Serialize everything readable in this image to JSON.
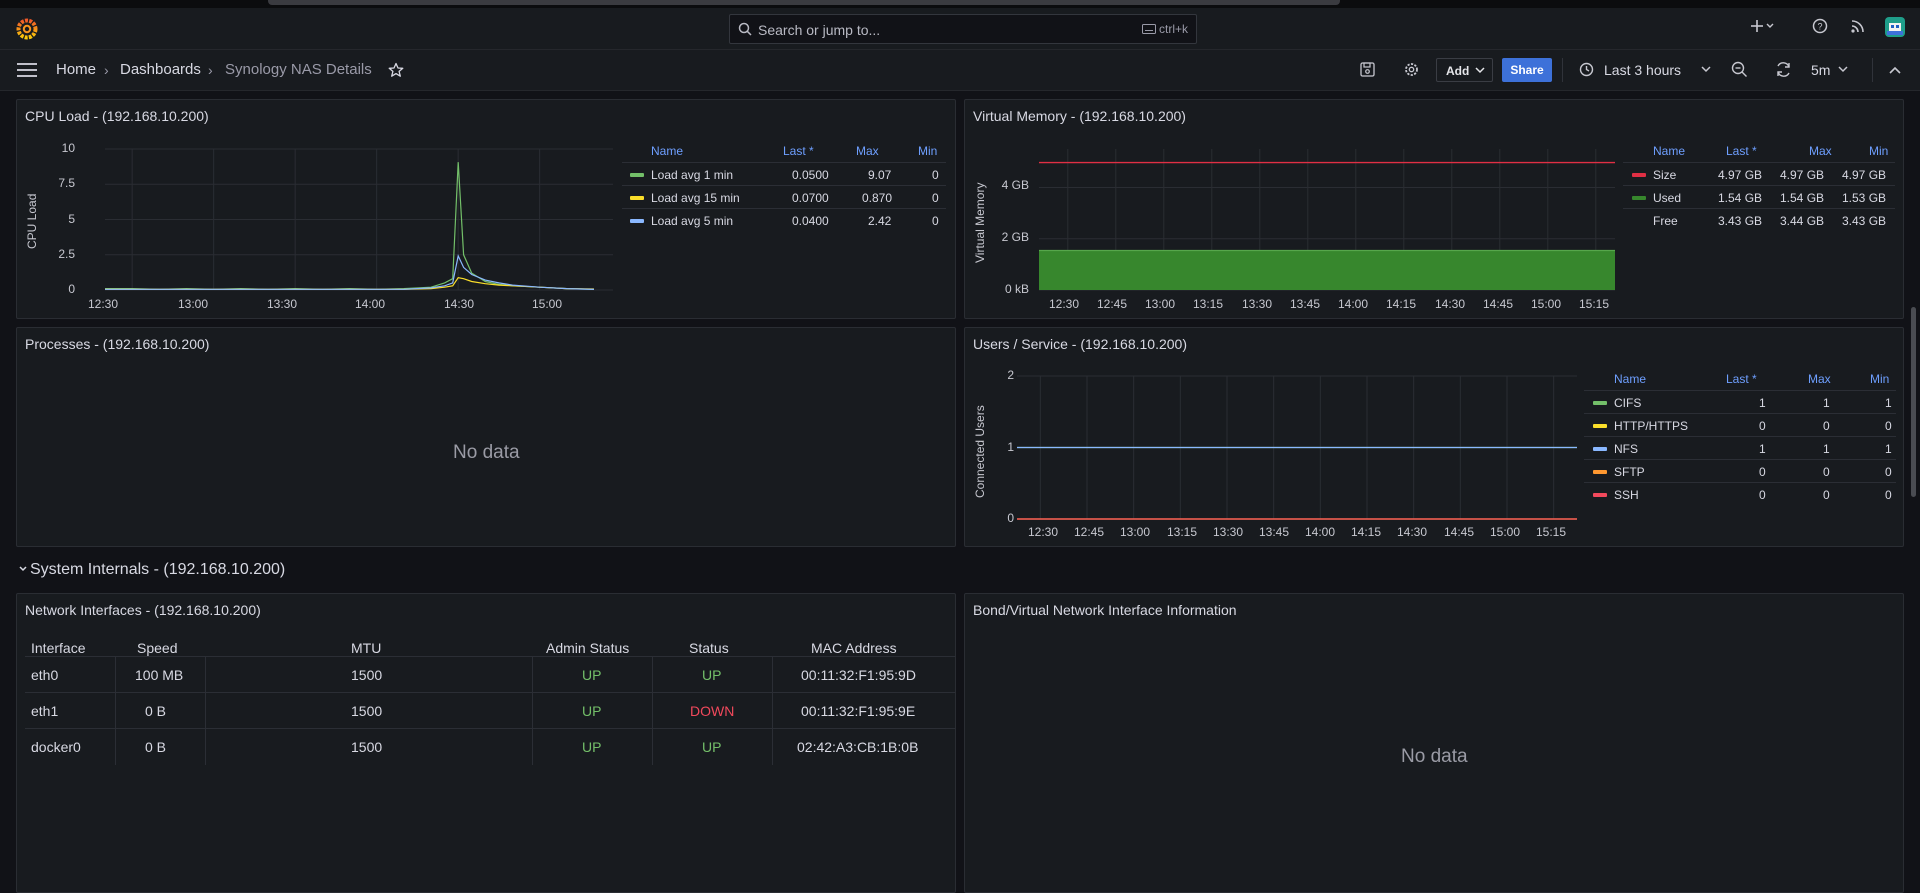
{
  "header": {
    "search_placeholder": "Search or jump to...",
    "search_shortcut": "ctrl+k"
  },
  "breadcrumb": {
    "home": "Home",
    "dashboards": "Dashboards",
    "current": "Synology NAS Details"
  },
  "toolbar": {
    "add_label": "Add",
    "share_label": "Share",
    "time_range": "Last 3 hours",
    "refresh_interval": "5m"
  },
  "colors": {
    "accent": "#3d71d9",
    "green": "#73bf69",
    "yellow": "#fade2a",
    "blue": "#8ab8ff",
    "orange": "#ff9830",
    "red": "#f2495c",
    "memory_fill": "#37872d"
  },
  "panels": {
    "cpu": {
      "title": "CPU Load - (192.168.10.200)",
      "ylabel": "CPU Load",
      "legend_headers": [
        "Name",
        "Last *",
        "Max",
        "Min"
      ],
      "legend": [
        {
          "name": "Load avg 1 min",
          "last": "0.0500",
          "max": "9.07",
          "min": "0",
          "color": "#73bf69"
        },
        {
          "name": "Load avg 15 min",
          "last": "0.0700",
          "max": "0.870",
          "min": "0",
          "color": "#fade2a"
        },
        {
          "name": "Load avg 5 min",
          "last": "0.0400",
          "max": "2.42",
          "min": "0",
          "color": "#8ab8ff"
        }
      ]
    },
    "memory": {
      "title": "Virtual Memory - (192.168.10.200)",
      "ylabel": "Virtual Memory",
      "legend_headers": [
        "Name",
        "Last *",
        "Max",
        "Min"
      ],
      "legend": [
        {
          "name": "Size",
          "last": "4.97 GB",
          "max": "4.97 GB",
          "min": "4.97 GB",
          "color": "#e02f44"
        },
        {
          "name": "Used",
          "last": "1.54 GB",
          "max": "1.54 GB",
          "min": "1.53 GB",
          "color": "#37872d"
        },
        {
          "name": "Free",
          "last": "3.43 GB",
          "max": "3.44 GB",
          "min": "3.43 GB",
          "color": ""
        }
      ]
    },
    "processes": {
      "title": "Processes - (192.168.10.200)",
      "no_data": "No data"
    },
    "users": {
      "title": "Users / Service - (192.168.10.200)",
      "ylabel": "Connected Users",
      "legend_headers": [
        "Name",
        "Last *",
        "Max",
        "Min"
      ],
      "legend": [
        {
          "name": "CIFS",
          "last": "1",
          "max": "1",
          "min": "1",
          "color": "#73bf69"
        },
        {
          "name": "HTTP/HTTPS",
          "last": "0",
          "max": "0",
          "min": "0",
          "color": "#fade2a"
        },
        {
          "name": "NFS",
          "last": "1",
          "max": "1",
          "min": "1",
          "color": "#8ab8ff"
        },
        {
          "name": "SFTP",
          "last": "0",
          "max": "0",
          "min": "0",
          "color": "#ff9830"
        },
        {
          "name": "SSH",
          "last": "0",
          "max": "0",
          "min": "0",
          "color": "#f2495c"
        }
      ]
    },
    "section_title": "System Internals - (192.168.10.200)",
    "network": {
      "title": "Network Interfaces - (192.168.10.200)",
      "headers": [
        "Interface",
        "Speed",
        "MTU",
        "Admin Status",
        "Status",
        "MAC Address"
      ],
      "rows": [
        {
          "interface": "eth0",
          "speed": "100 MB",
          "mtu": "1500",
          "admin": "UP",
          "status": "UP",
          "mac": "00:11:32:F1:95:9D"
        },
        {
          "interface": "eth1",
          "speed": "0 B",
          "mtu": "1500",
          "admin": "UP",
          "status": "DOWN",
          "mac": "00:11:32:F1:95:9E"
        },
        {
          "interface": "docker0",
          "speed": "0 B",
          "mtu": "1500",
          "admin": "UP",
          "status": "UP",
          "mac": "02:42:A3:CB:1B:0B"
        }
      ]
    },
    "bond": {
      "title": "Bond/Virtual Network Interface Information",
      "no_data": "No data"
    }
  },
  "chart_data": [
    {
      "type": "line",
      "ylabel": "CPU Load",
      "ylim": [
        0,
        10
      ],
      "y_ticks": [
        "10",
        "7.5",
        "5",
        "2.5",
        "0"
      ],
      "x_ticks": [
        "12:30",
        "13:00",
        "13:30",
        "14:00",
        "14:30",
        "15:00"
      ],
      "x": [
        "12:20",
        "12:30",
        "12:40",
        "12:50",
        "13:00",
        "13:10",
        "13:20",
        "13:30",
        "13:40",
        "13:50",
        "14:00",
        "14:10",
        "14:20",
        "14:25",
        "14:28",
        "14:30",
        "14:32",
        "14:35",
        "14:40",
        "14:45",
        "14:50",
        "15:00",
        "15:10",
        "15:20"
      ],
      "series": [
        {
          "name": "Load avg 1 min",
          "values": [
            0.1,
            0.1,
            0.05,
            0.1,
            0.05,
            0.1,
            0.05,
            0.1,
            0.05,
            0.1,
            0.05,
            0.1,
            0.2,
            0.5,
            0.8,
            9.07,
            2.5,
            1.2,
            0.6,
            0.4,
            0.3,
            0.2,
            0.1,
            0.05
          ]
        },
        {
          "name": "Load avg 15 min",
          "values": [
            0.05,
            0.05,
            0.05,
            0.05,
            0.05,
            0.05,
            0.05,
            0.05,
            0.05,
            0.05,
            0.05,
            0.05,
            0.1,
            0.2,
            0.3,
            0.87,
            0.8,
            0.6,
            0.45,
            0.35,
            0.3,
            0.2,
            0.1,
            0.07
          ]
        },
        {
          "name": "Load avg 5 min",
          "values": [
            0.05,
            0.05,
            0.05,
            0.05,
            0.05,
            0.05,
            0.05,
            0.05,
            0.05,
            0.05,
            0.05,
            0.05,
            0.15,
            0.3,
            0.5,
            2.42,
            1.6,
            1.1,
            0.7,
            0.5,
            0.35,
            0.2,
            0.1,
            0.04
          ]
        }
      ]
    },
    {
      "type": "area",
      "ylabel": "Virtual Memory",
      "ylim": [
        0,
        5.5
      ],
      "y_ticks": [
        "4 GB",
        "2 GB",
        "0 kB"
      ],
      "x_ticks": [
        "12:30",
        "12:45",
        "13:00",
        "13:15",
        "13:30",
        "13:45",
        "14:00",
        "14:15",
        "14:30",
        "14:45",
        "15:00",
        "15:15"
      ],
      "series": [
        {
          "name": "Size",
          "value": 4.97
        },
        {
          "name": "Used",
          "value": 1.54
        }
      ]
    },
    {
      "type": "line",
      "ylabel": "Connected Users",
      "ylim": [
        0,
        2
      ],
      "y_ticks": [
        "2",
        "1",
        "0"
      ],
      "x_ticks": [
        "12:30",
        "12:45",
        "13:00",
        "13:15",
        "13:30",
        "13:45",
        "14:00",
        "14:15",
        "14:30",
        "14:45",
        "15:00",
        "15:15"
      ],
      "series": [
        {
          "name": "CIFS",
          "value": 1
        },
        {
          "name": "HTTP/HTTPS",
          "value": 0
        },
        {
          "name": "NFS",
          "value": 1
        },
        {
          "name": "SFTP",
          "value": 0
        },
        {
          "name": "SSH",
          "value": 0
        }
      ]
    }
  ]
}
